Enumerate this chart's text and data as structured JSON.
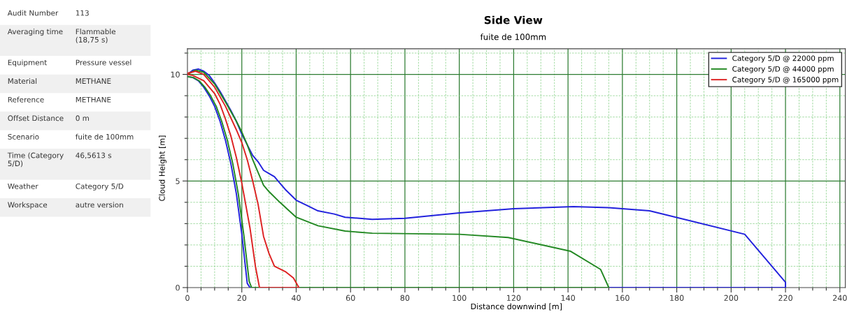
{
  "chart_data": [
    {
      "type": "other",
      "annotations": [
        "Audit Number",
        "113",
        "Averaging time",
        "Flammable\n(18,75 s)",
        "Equipment",
        "Pressure vessel",
        "Material",
        "METHANE",
        "Reference",
        "METHANE",
        "Offset Distance",
        "0 m",
        "Scenario",
        "fuite de 100mm",
        "Time (Category\n5/D)",
        "46,5613 s",
        "Weather",
        "Category 5/D",
        "Workspace",
        "autre version"
      ]
    },
    {
      "type": "line",
      "title": "Side View",
      "subtitle": "fuite de 100mm",
      "xlabel": "Distance downwind [m]",
      "ylabel": "Cloud Height [m]",
      "xlim": [
        0,
        242
      ],
      "ylim": [
        0,
        11.2
      ],
      "xticks": [
        0,
        {
          "value": 5,
          "label": null
        },
        {
          "value": 10,
          "label": null
        },
        {
          "value": 15,
          "label": null
        },
        20,
        {
          "value": 25,
          "label": null
        },
        {
          "value": 30,
          "label": null
        },
        {
          "value": 35,
          "label": null
        },
        40,
        {
          "value": 45,
          "label": null
        },
        {
          "value": 50,
          "label": null
        },
        {
          "value": 55,
          "label": null
        },
        60,
        {
          "value": 65,
          "label": null
        },
        {
          "value": 70,
          "label": null
        },
        {
          "value": 75,
          "label": null
        },
        80,
        {
          "value": 85,
          "label": null
        },
        {
          "value": 90,
          "label": null
        },
        {
          "value": 95,
          "label": null
        },
        100,
        {
          "value": 105,
          "label": null
        },
        {
          "value": 110,
          "label": null
        },
        {
          "value": 115,
          "label": null
        },
        120,
        {
          "value": 125,
          "label": null
        },
        {
          "value": 130,
          "label": null
        },
        {
          "value": 135,
          "label": null
        },
        140,
        {
          "value": 145,
          "label": null
        },
        {
          "value": 150,
          "label": null
        },
        {
          "value": 155,
          "label": null
        },
        160,
        {
          "value": 165,
          "label": null
        },
        {
          "value": 170,
          "label": null
        },
        {
          "value": 175,
          "label": null
        },
        180,
        {
          "value": 185,
          "label": null
        },
        {
          "value": 190,
          "label": null
        },
        {
          "value": 195,
          "label": null
        },
        200,
        {
          "value": 205,
          "label": null
        },
        {
          "value": 210,
          "label": null
        },
        {
          "value": 215,
          "label": null
        },
        220,
        {
          "value": 225,
          "label": null
        },
        {
          "value": 230,
          "label": null
        },
        {
          "value": 235,
          "label": null
        },
        240
      ],
      "yticks": [
        0,
        {
          "value": 1,
          "label": null
        },
        {
          "value": 2,
          "label": null
        },
        {
          "value": 3,
          "label": null
        },
        {
          "value": 4,
          "label": null
        },
        5,
        {
          "value": 6,
          "label": null
        },
        {
          "value": 7,
          "label": null
        },
        {
          "value": 8,
          "label": null
        },
        {
          "value": 9,
          "label": null
        },
        10,
        {
          "value": 11,
          "label": null
        }
      ],
      "grid": true,
      "legend": "top right",
      "marker": "none",
      "line_style": "solid",
      "series": [
        {
          "name": "Category 5/D @ 22000 ppm",
          "color": "#2222dd",
          "x": [
            0,
            2,
            4,
            6,
            8,
            10,
            12,
            14,
            16,
            18,
            20,
            22,
            24,
            26,
            28,
            30,
            32,
            34,
            36,
            40,
            44,
            48,
            54,
            58,
            68,
            80,
            100,
            120,
            142,
            155,
            170,
            205,
            220,
            220,
            23,
            22,
            20,
            18,
            16,
            14,
            12,
            10,
            8,
            6,
            4,
            2,
            0
          ],
          "values": [
            10,
            10.2,
            10.25,
            10.15,
            9.95,
            9.6,
            9.2,
            8.75,
            8.3,
            7.8,
            7.2,
            6.7,
            6.2,
            5.9,
            5.5,
            5.35,
            5.2,
            4.9,
            4.6,
            4.1,
            3.85,
            3.6,
            3.45,
            3.3,
            3.2,
            3.25,
            3.5,
            3.7,
            3.8,
            3.75,
            3.6,
            2.5,
            0.25,
            0,
            0,
            0.2,
            2.5,
            4.4,
            5.8,
            6.9,
            7.8,
            8.5,
            9.0,
            9.4,
            9.7,
            9.85,
            9.9
          ]
        },
        {
          "name": "Category 5/D @ 44000 ppm",
          "color": "#228822",
          "x": [
            0,
            3,
            6,
            10,
            14,
            18,
            20,
            22,
            24,
            26,
            28,
            30,
            34,
            40,
            48,
            58,
            68,
            100,
            118,
            141,
            152,
            155,
            23.6,
            22.7,
            20.7,
            18.7,
            16.7,
            14.7,
            12.6,
            10.6,
            8.5,
            6.4,
            4.3,
            2.2,
            0
          ],
          "values": [
            10,
            10.2,
            10.1,
            9.55,
            8.7,
            7.8,
            7.3,
            6.7,
            6.0,
            5.4,
            4.8,
            4.5,
            4.0,
            3.3,
            2.9,
            2.65,
            2.55,
            2.5,
            2.35,
            1.7,
            0.85,
            0,
            0,
            0.3,
            2.5,
            4.4,
            5.8,
            6.9,
            7.8,
            8.5,
            9.0,
            9.4,
            9.7,
            9.85,
            9.9
          ]
        },
        {
          "name": "Category 5/D @ 165000 ppm",
          "color": "#dd2222",
          "x": [
            0,
            3,
            6,
            10,
            14,
            18,
            20,
            22,
            24,
            26,
            28,
            30,
            32,
            36,
            39,
            41,
            26.5,
            25,
            23,
            20,
            18,
            16,
            14,
            12,
            10,
            6,
            2,
            0
          ],
          "values": [
            10.05,
            10.15,
            10.0,
            9.4,
            8.5,
            7.4,
            6.8,
            6.0,
            5.0,
            3.9,
            2.4,
            1.6,
            1.0,
            0.75,
            0.45,
            0,
            0,
            1.0,
            2.8,
            4.9,
            6.1,
            7.1,
            7.9,
            8.6,
            9.1,
            9.7,
            9.95,
            10.0
          ]
        }
      ]
    }
  ]
}
